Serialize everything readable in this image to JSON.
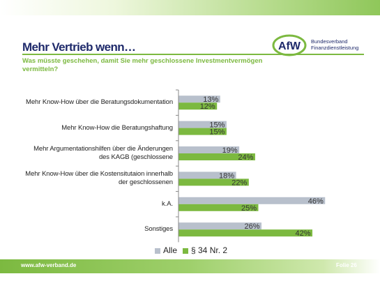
{
  "header": {
    "title": "Mehr Vertrieb wenn…",
    "subtitle": "Was müsste geschehen, damit Sie mehr geschlossene Investmentvermögen vermitteln?"
  },
  "logo": {
    "mark": "AfW",
    "line1": "Bundesverband",
    "line2": "Finanzdienstleistung"
  },
  "footer": {
    "url": "www.afw-verband.de",
    "page": "Folie 26"
  },
  "colors": {
    "alle": "#b8c0cc",
    "p34": "#7cb940",
    "title": "#1f2a6b",
    "accent": "#7cb940"
  },
  "chart_data": {
    "type": "bar",
    "orientation": "horizontal",
    "categories": [
      "Mehr Know-How über die Beratungsdokumentation",
      "Mehr Know-How die Beratungshaftung",
      "Mehr Argumentationshilfen über die Änderungen des KAGB (geschlossene",
      "Mehr Know-How über die Kostensitutaion innerhalb der geschlossenen",
      "k.A.",
      "Sonstiges"
    ],
    "series": [
      {
        "name": "Alle",
        "values": [
          13,
          15,
          19,
          18,
          46,
          26
        ]
      },
      {
        "name": "§ 34 Nr. 2",
        "values": [
          12,
          15,
          24,
          22,
          25,
          42
        ]
      }
    ],
    "value_suffix": "%",
    "xlim": [
      0,
      50
    ],
    "legend_position": "bottom",
    "grid": false
  }
}
